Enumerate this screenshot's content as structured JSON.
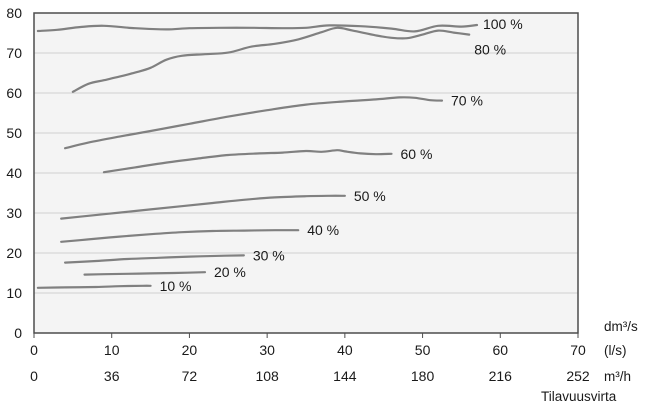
{
  "chart_data": {
    "type": "line",
    "xlabel": "Tilavuusvirta",
    "ylabel": "",
    "xlim": [
      0,
      70
    ],
    "ylim": [
      0,
      80
    ],
    "grid": true,
    "x_ticks": [
      "0",
      "10",
      "20",
      "30",
      "40",
      "50",
      "60",
      "70"
    ],
    "x_ticks_m3h": [
      "0",
      "36",
      "72",
      "108",
      "144",
      "180",
      "216",
      "252"
    ],
    "y_ticks": [
      "0",
      "10",
      "20",
      "30",
      "40",
      "50",
      "60",
      "70",
      "80"
    ],
    "x_units": {
      "dm3s": "dm³/s",
      "ls": "(l/s)",
      "m3h": "m³/h"
    },
    "colors": {
      "line": "#808080",
      "grid": "#cfcfcf",
      "plot_bg": "#f4f4f4",
      "axis": "#4d4d4d"
    },
    "series": [
      {
        "name": "100 %",
        "points": [
          [
            0.5,
            75.5
          ],
          [
            3,
            75.8
          ],
          [
            6,
            76.5
          ],
          [
            9,
            76.8
          ],
          [
            13,
            76.2
          ],
          [
            17,
            75.9
          ],
          [
            20,
            76.2
          ],
          [
            24,
            76.3
          ],
          [
            28,
            76.3
          ],
          [
            32,
            76.2
          ],
          [
            35,
            76.3
          ],
          [
            38,
            76.9
          ],
          [
            42,
            76.7
          ],
          [
            46,
            76.1
          ],
          [
            49,
            75.4
          ],
          [
            52,
            76.8
          ],
          [
            55,
            76.6
          ],
          [
            57,
            77
          ]
        ]
      },
      {
        "name": "80 %",
        "points": [
          [
            5,
            60.3
          ],
          [
            7,
            62.3
          ],
          [
            9,
            63.2
          ],
          [
            11,
            64.1
          ],
          [
            13,
            65.1
          ],
          [
            15,
            66.3
          ],
          [
            17,
            68.3
          ],
          [
            19,
            69.3
          ],
          [
            22,
            69.7
          ],
          [
            25,
            70.1
          ],
          [
            28,
            71.6
          ],
          [
            31,
            72.3
          ],
          [
            34,
            73.4
          ],
          [
            37,
            75.2
          ],
          [
            39,
            76.3
          ],
          [
            41,
            75.6
          ],
          [
            44,
            74.4
          ],
          [
            46,
            73.8
          ],
          [
            48,
            73.7
          ],
          [
            50,
            74.6
          ],
          [
            52,
            75.6
          ],
          [
            54,
            75.1
          ],
          [
            56,
            74.6
          ]
        ]
      },
      {
        "name": "70 %",
        "points": [
          [
            4,
            46.2
          ],
          [
            7,
            47.6
          ],
          [
            11,
            49.1
          ],
          [
            15,
            50.5
          ],
          [
            20,
            52.3
          ],
          [
            25,
            54.1
          ],
          [
            30,
            55.7
          ],
          [
            35,
            57.1
          ],
          [
            40,
            57.9
          ],
          [
            44,
            58.4
          ],
          [
            47,
            58.9
          ],
          [
            49,
            58.8
          ],
          [
            51,
            58.2
          ],
          [
            52.5,
            58.1
          ]
        ]
      },
      {
        "name": "60 %",
        "points": [
          [
            9,
            40.2
          ],
          [
            13,
            41.4
          ],
          [
            17,
            42.6
          ],
          [
            21,
            43.6
          ],
          [
            25,
            44.5
          ],
          [
            29,
            44.9
          ],
          [
            32,
            45.1
          ],
          [
            35,
            45.5
          ],
          [
            37,
            45.3
          ],
          [
            39,
            45.7
          ],
          [
            40,
            45.4
          ],
          [
            42,
            44.9
          ],
          [
            44,
            44.7
          ],
          [
            46,
            44.8
          ]
        ]
      },
      {
        "name": "50 %",
        "points": [
          [
            3.5,
            28.6
          ],
          [
            7,
            29.3
          ],
          [
            11,
            30.1
          ],
          [
            15,
            30.9
          ],
          [
            19,
            31.7
          ],
          [
            23,
            32.5
          ],
          [
            27,
            33.3
          ],
          [
            31,
            33.9
          ],
          [
            35,
            34.2
          ],
          [
            38,
            34.3
          ],
          [
            40,
            34.3
          ]
        ]
      },
      {
        "name": "40 %",
        "points": [
          [
            3.5,
            22.8
          ],
          [
            7,
            23.4
          ],
          [
            11,
            24.1
          ],
          [
            15,
            24.7
          ],
          [
            19,
            25.2
          ],
          [
            23,
            25.5
          ],
          [
            27,
            25.6
          ],
          [
            31,
            25.7
          ],
          [
            34,
            25.7
          ]
        ]
      },
      {
        "name": "30 %",
        "points": [
          [
            4,
            17.6
          ],
          [
            8,
            18
          ],
          [
            12,
            18.5
          ],
          [
            16,
            18.8
          ],
          [
            20,
            19.1
          ],
          [
            24,
            19.3
          ],
          [
            27,
            19.4
          ]
        ]
      },
      {
        "name": "20 %",
        "points": [
          [
            6.5,
            14.6
          ],
          [
            9,
            14.7
          ],
          [
            12,
            14.8
          ],
          [
            15,
            14.9
          ],
          [
            18,
            15
          ],
          [
            22,
            15.2
          ]
        ]
      },
      {
        "name": "10 %",
        "points": [
          [
            0.5,
            11.3
          ],
          [
            4,
            11.4
          ],
          [
            8,
            11.5
          ],
          [
            11,
            11.7
          ],
          [
            14,
            11.8
          ],
          [
            15,
            11.8
          ]
        ]
      }
    ]
  }
}
